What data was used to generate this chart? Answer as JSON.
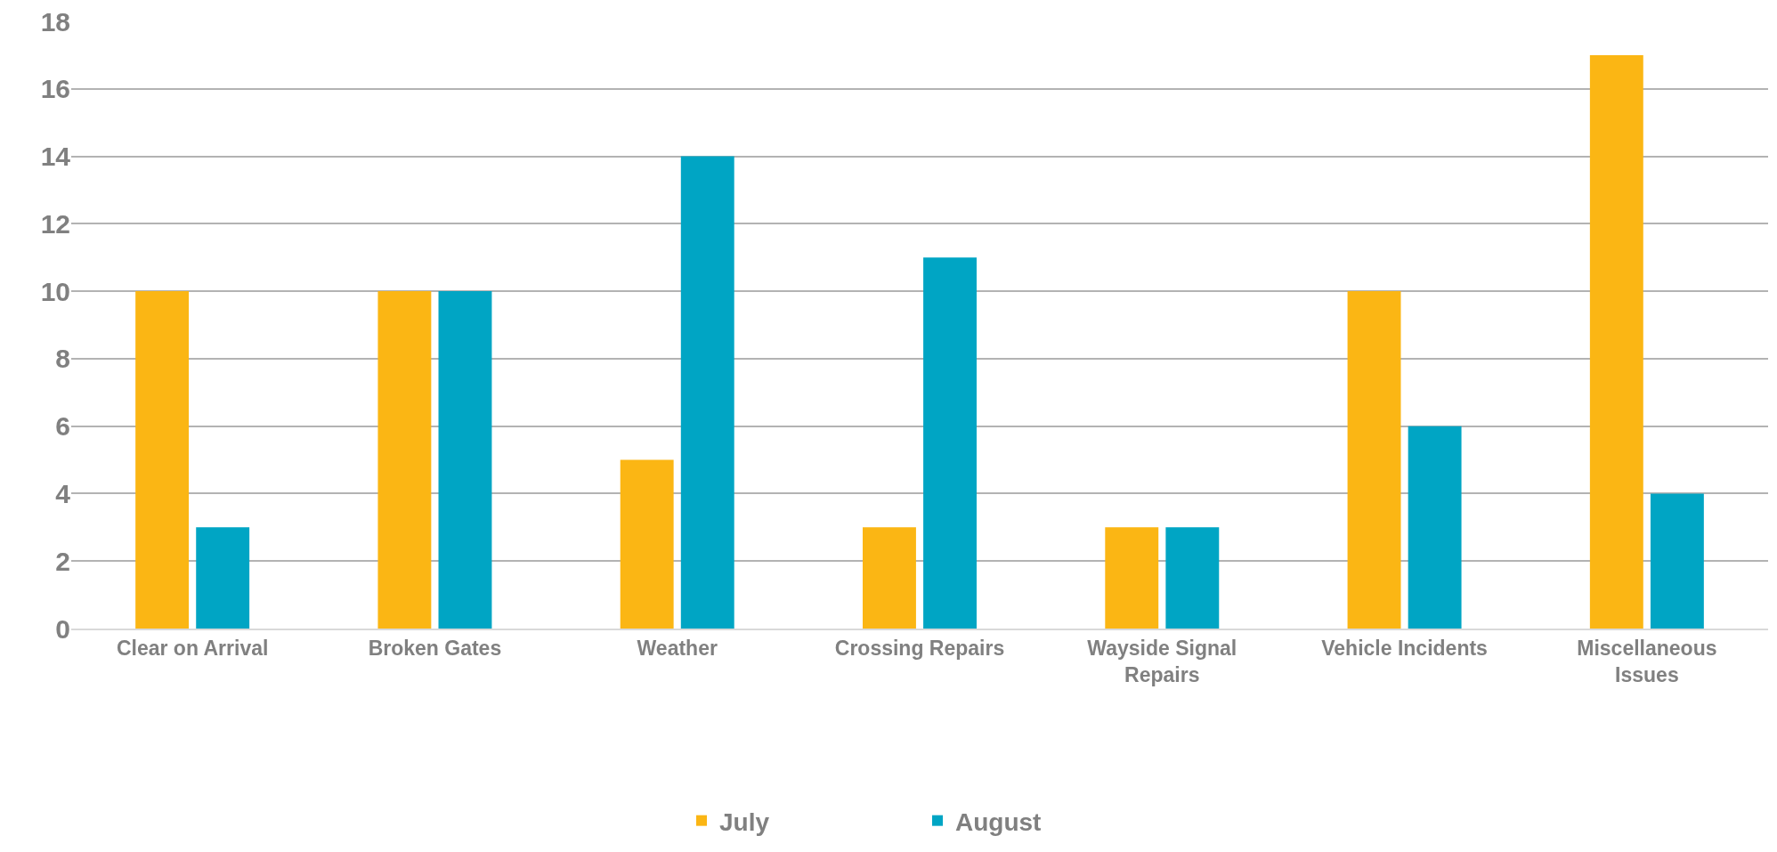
{
  "chart_data": {
    "type": "bar",
    "categories": [
      "Clear on Arrival",
      "Broken Gates",
      "Weather",
      "Crossing Repairs",
      "Wayside Signal Repairs",
      "Vehicle Incidents",
      "Miscellaneous Issues"
    ],
    "series": [
      {
        "name": "July",
        "color": "#fbb614",
        "values": [
          10,
          10,
          5,
          3,
          3,
          10,
          17
        ]
      },
      {
        "name": "August",
        "color": "#00a5c4",
        "values": [
          3,
          10,
          14,
          11,
          3,
          6,
          4
        ]
      }
    ],
    "ylim": [
      0,
      18
    ],
    "yticks": [
      0,
      2,
      4,
      6,
      8,
      10,
      12,
      14,
      16,
      18
    ],
    "grid": "y",
    "legend": "bottom"
  }
}
